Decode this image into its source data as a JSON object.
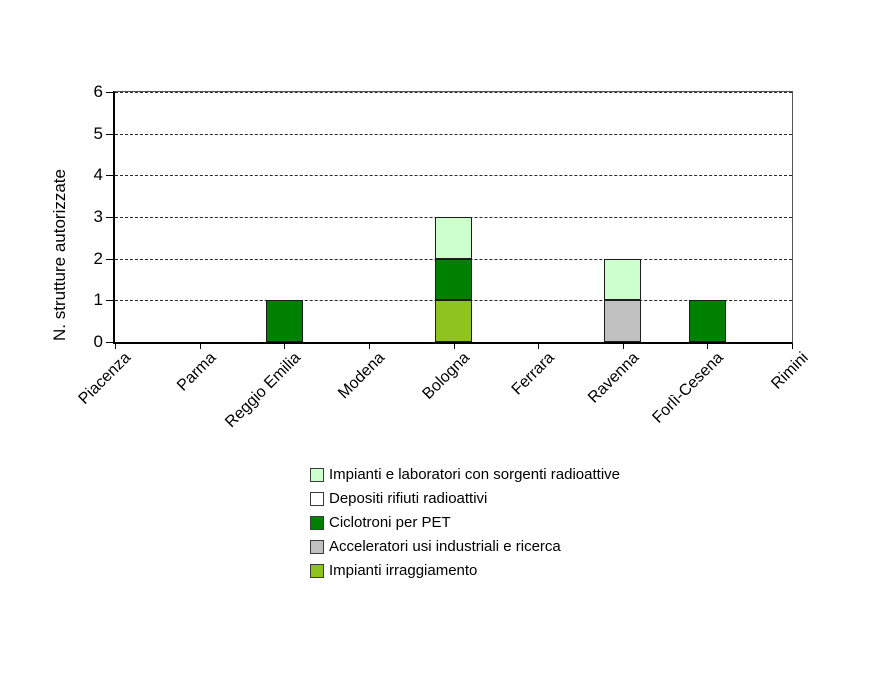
{
  "chart_data": {
    "type": "bar",
    "stacked": true,
    "title": "",
    "xlabel": "",
    "ylabel": "N. strutture autorizzate",
    "ylim": [
      0,
      6
    ],
    "yticks": [
      0,
      1,
      2,
      3,
      4,
      5,
      6
    ],
    "grid": "horizontal-dashed",
    "legend_position": "bottom-center",
    "categories": [
      "Piacenza",
      "Parma",
      "Reggio Emilia",
      "Modena",
      "Bologna",
      "Ferrara",
      "Ravenna",
      "Forlì-Cesena",
      "Rimini"
    ],
    "series": [
      {
        "name": "Impianti e laboratori con sorgenti radioattive",
        "color": "#CCFFCC",
        "values": [
          0,
          0,
          0,
          0,
          1,
          0,
          1,
          0,
          0
        ]
      },
      {
        "name": "Depositi rifiuti radioattivi",
        "color": "#FFFFFF",
        "values": [
          0,
          0,
          0,
          0,
          0,
          0,
          0,
          0,
          0
        ]
      },
      {
        "name": "Ciclotroni per PET",
        "color": "#008000",
        "values": [
          0,
          0,
          1,
          0,
          1,
          0,
          0,
          1,
          0
        ]
      },
      {
        "name": "Acceleratori usi industriali e ricerca",
        "color": "#C0C0C0",
        "values": [
          0,
          0,
          0,
          0,
          0,
          0,
          1,
          0,
          0
        ]
      },
      {
        "name": "Impianti irraggiamento",
        "color": "#8FC41E",
        "values": [
          0,
          0,
          0,
          0,
          1,
          0,
          0,
          0,
          0
        ]
      }
    ],
    "stack_order_bottom_to_top": [
      "Impianti irraggiamento",
      "Acceleratori usi industriali e ricerca",
      "Ciclotroni per PET",
      "Depositi rifiuti radioattivi",
      "Impianti e laboratori con sorgenti radioattive"
    ],
    "colors": {
      "axis": "#000000",
      "frame": "#555555",
      "gridline": "#2a2a2a",
      "bar_border": "#1c1c1c"
    }
  }
}
